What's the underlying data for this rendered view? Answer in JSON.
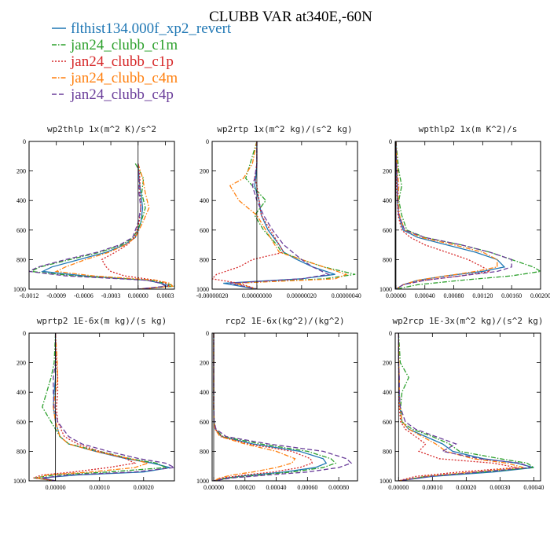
{
  "figure": {
    "title": "CLUBB VAR at340E,-60N",
    "legend": [
      {
        "label": "flthist134.000f_xp2_revert",
        "color": "#1f77b4",
        "dash": "solid"
      },
      {
        "label": "jan24_clubb_c1m",
        "color": "#2ca02c",
        "dash": "dashdot"
      },
      {
        "label": "jan24_clubb_c1p",
        "color": "#d62728",
        "dash": "dotted"
      },
      {
        "label": "jan24_clubb_c4m",
        "color": "#ff7f0e",
        "dash": "dashdot"
      },
      {
        "label": "jan24_clubb_c4p",
        "color": "#6a3d9a",
        "dash": "dashed"
      }
    ]
  },
  "chart_data": [
    {
      "type": "line",
      "title": "wp2thlp  1x(m^2 K)/s^2",
      "xlim": [
        -0.0012,
        0.0004
      ],
      "xticks": [
        -0.0012,
        -0.0009,
        -0.0006,
        -0.0003,
        0.0,
        0.0003
      ],
      "xtick_labels": [
        "-0.0012",
        "-0.0009",
        "-0.0006",
        "-0.0003",
        "0.00000",
        "0.0003"
      ],
      "ylim": [
        1000,
        0
      ],
      "yticks": [
        0,
        200,
        400,
        600,
        800,
        1000
      ],
      "y": [
        150,
        250,
        350,
        450,
        550,
        650,
        700,
        750,
        800,
        850,
        880,
        910,
        940,
        960,
        980,
        1000
      ],
      "series": [
        {
          "name": "flthist134.000f_xp2_revert",
          "values": [
            0,
            1e-05,
            3e-05,
            5e-05,
            3e-05,
            -3e-05,
            -0.00015,
            -0.00035,
            -0.00065,
            -0.00095,
            -0.00105,
            -0.0006,
            0.0001,
            0.00025,
            0.00035,
            0
          ]
        },
        {
          "name": "jan24_clubb_c1m",
          "values": [
            -3e-05,
            6e-05,
            4e-05,
            8e-05,
            3e-05,
            -5e-05,
            -0.00018,
            -0.00042,
            -0.00075,
            -0.00108,
            -0.00118,
            -0.0007,
            0.00015,
            0.0003,
            0.0004,
            0
          ]
        },
        {
          "name": "jan24_clubb_c1p",
          "values": [
            0,
            2e-05,
            2e-05,
            3e-05,
            1e-05,
            -4e-05,
            -0.00012,
            -0.00025,
            -0.0004,
            -0.00035,
            -0.0003,
            -0.00015,
            0.0002,
            0.0003,
            0.00035,
            0
          ]
        },
        {
          "name": "jan24_clubb_c4m",
          "values": [
            0,
            5e-05,
            8e-05,
            0.00012,
            5e-05,
            -3e-05,
            -0.00014,
            -0.00032,
            -0.00058,
            -0.0008,
            -0.0009,
            -0.0005,
            0.0002,
            0.00035,
            0.00038,
            0
          ]
        },
        {
          "name": "jan24_clubb_c4p",
          "values": [
            0,
            1e-05,
            1e-05,
            3e-05,
            0.0,
            -6e-05,
            -0.0002,
            -0.00045,
            -0.0008,
            -0.0011,
            -0.0012,
            -0.0008,
            0.0001,
            0.00025,
            0.0003,
            0
          ]
        }
      ]
    },
    {
      "type": "line",
      "title": "wp2rtp  1x(m^2 kg)/(s^2 kg)",
      "xlim": [
        -2e-07,
        4.5e-07
      ],
      "xticks": [
        -2e-07,
        0.0,
        2e-07,
        4e-07
      ],
      "xtick_labels": [
        "-0.00000020",
        "0.00000000",
        "0.00000020",
        "0.00000040"
      ],
      "ylim": [
        1000,
        0
      ],
      "yticks": [
        0,
        200,
        400,
        600,
        800,
        1000
      ],
      "y": [
        0,
        150,
        250,
        300,
        400,
        500,
        600,
        700,
        750,
        800,
        850,
        900,
        930,
        960,
        1000
      ],
      "series": [
        {
          "name": "flthist134.000f_xp2_revert",
          "values": [
            0,
            0,
            -5e-09,
            -1e-08,
            1e-08,
            2e-08,
            5e-08,
            1e-07,
            1.2e-07,
            1.8e-07,
            2.5e-07,
            3.5e-07,
            2e-07,
            -1.5e-07,
            0
          ]
        },
        {
          "name": "jan24_clubb_c1m",
          "values": [
            0,
            -3e-08,
            -5e-08,
            -2e-08,
            4e-08,
            -1e-08,
            3e-08,
            9e-08,
            1.1e-07,
            2e-07,
            3e-07,
            4.4e-07,
            3e-07,
            -1e-07,
            0
          ]
        },
        {
          "name": "jan24_clubb_c1p",
          "values": [
            0,
            0.0,
            -1e-08,
            0.0,
            1e-08,
            2e-08,
            6e-08,
            1e-07,
            1.2e-07,
            -2e-08,
            -8e-08,
            -1.8e-07,
            -2e-07,
            -8e-08,
            0
          ]
        },
        {
          "name": "jan24_clubb_c4m",
          "values": [
            0,
            -2e-08,
            -6e-08,
            -1.2e-07,
            -8e-08,
            0.0,
            4e-08,
            8e-08,
            1e-07,
            2e-07,
            3e-07,
            4e-07,
            3.5e-07,
            -1e-07,
            0
          ]
        },
        {
          "name": "jan24_clubb_c4p",
          "values": [
            0,
            0.0,
            -1e-08,
            -2e-08,
            0.0,
            3e-08,
            7e-08,
            1.2e-07,
            1.6e-07,
            2e-07,
            2.5e-07,
            3.2e-07,
            2e-07,
            -1.2e-07,
            0
          ]
        }
      ]
    },
    {
      "type": "line",
      "title": "wpthlp2  1x(m K^2)/s",
      "xlim": [
        -1e-05,
        0.002
      ],
      "xticks": [
        0.0,
        0.0004,
        0.0008,
        0.0012,
        0.0016,
        0.002
      ],
      "xtick_labels": [
        "0.00000",
        "0.00040",
        "0.00080",
        "0.00120",
        "0.00160",
        "0.00200"
      ],
      "ylim": [
        1000,
        0
      ],
      "yticks": [
        0,
        200,
        400,
        600,
        800,
        1000
      ],
      "y": [
        0,
        200,
        300,
        400,
        500,
        600,
        650,
        700,
        750,
        800,
        850,
        880,
        910,
        940,
        970,
        1000
      ],
      "series": [
        {
          "name": "flthist134.000f_xp2_revert",
          "values": [
            0,
            1e-05,
            2e-05,
            2e-05,
            4e-05,
            0.0001,
            0.0003,
            0.0007,
            0.0011,
            0.0014,
            0.0015,
            0.0012,
            0.0007,
            0.0003,
            0.0001,
            0
          ]
        },
        {
          "name": "jan24_clubb_c1m",
          "values": [
            0,
            4e-05,
            8e-05,
            4e-05,
            8e-05,
            0.00015,
            0.0004,
            0.0009,
            0.0013,
            0.0016,
            0.0019,
            0.002,
            0.0016,
            0.0009,
            0.0003,
            0
          ]
        },
        {
          "name": "jan24_clubb_c1p",
          "values": [
            0,
            1e-05,
            1e-05,
            2e-05,
            3e-05,
            8e-05,
            0.0002,
            0.0004,
            0.0007,
            0.001,
            0.0012,
            0.0013,
            0.0009,
            0.0004,
            0.0001,
            0
          ]
        },
        {
          "name": "jan24_clubb_c4m",
          "values": [
            0,
            2e-05,
            4e-05,
            3e-05,
            5e-05,
            0.00012,
            0.00035,
            0.0008,
            0.0012,
            0.0014,
            0.0014,
            0.0011,
            0.0007,
            0.0003,
            0.0001,
            0
          ]
        },
        {
          "name": "jan24_clubb_c4p",
          "values": [
            0,
            1e-05,
            2e-05,
            2e-05,
            4e-05,
            0.00012,
            0.0004,
            0.0009,
            0.0013,
            0.0016,
            0.0016,
            0.0014,
            0.0009,
            0.0004,
            0.0001,
            0
          ]
        }
      ]
    },
    {
      "type": "line",
      "title": "wprtp2  1E-6x(m kg)/(s kg)",
      "xlim": [
        -6e-05,
        0.00027
      ],
      "xticks": [
        0.0,
        0.0001,
        0.0002
      ],
      "xtick_labels": [
        "0.00000",
        "0.00010",
        "0.00020"
      ],
      "ylim": [
        1000,
        0
      ],
      "yticks": [
        0,
        200,
        400,
        600,
        800,
        1000
      ],
      "y": [
        0,
        200,
        300,
        400,
        500,
        600,
        700,
        750,
        800,
        850,
        880,
        910,
        940,
        960,
        980,
        1000
      ],
      "series": [
        {
          "name": "flthist134.000f_xp2_revert",
          "values": [
            0,
            0,
            0,
            -3e-06,
            -5e-06,
            0.0,
            1e-05,
            3e-05,
            9e-05,
            0.00016,
            0.00022,
            0.00026,
            0.0002,
            5e-05,
            -3e-05,
            0
          ]
        },
        {
          "name": "jan24_clubb_c1m",
          "values": [
            0,
            -3e-06,
            -1e-05,
            -2e-05,
            -3e-05,
            -1e-05,
            1e-05,
            3e-05,
            0.0001,
            0.00017,
            0.00023,
            0.00025,
            0.00012,
            0.0,
            -5e-05,
            0
          ]
        },
        {
          "name": "jan24_clubb_c1p",
          "values": [
            0,
            2e-06,
            5e-06,
            5e-06,
            2e-06,
            5e-06,
            2e-05,
            5e-05,
            0.0001,
            0.00016,
            0.00018,
            0.00012,
            4e-05,
            -3e-05,
            -5e-05,
            0
          ]
        },
        {
          "name": "jan24_clubb_c4m",
          "values": [
            0,
            4e-06,
            5e-06,
            0.0,
            -5e-06,
            0.0,
            1e-05,
            3e-05,
            9e-05,
            0.00017,
            0.00021,
            0.00018,
            8e-05,
            -2e-05,
            -4e-05,
            0
          ]
        },
        {
          "name": "jan24_clubb_c4p",
          "values": [
            0,
            0.0,
            -5e-06,
            -5e-06,
            -3e-06,
            5e-06,
            3e-05,
            6e-05,
            0.00012,
            0.00019,
            0.00025,
            0.00027,
            0.00018,
            3e-05,
            -3e-05,
            0
          ]
        }
      ]
    },
    {
      "type": "line",
      "title": "rcp2  1E-6x(kg^2)/(kg^2)",
      "xlim": [
        -1e-05,
        0.00092
      ],
      "xticks": [
        0.0,
        0.0002,
        0.0004,
        0.0006,
        0.0008
      ],
      "xtick_labels": [
        "0.00000",
        "0.00020",
        "0.00040",
        "0.00060",
        "0.00080"
      ],
      "ylim": [
        1000,
        0
      ],
      "yticks": [
        0,
        200,
        400,
        600,
        800,
        1000
      ],
      "y": [
        0,
        300,
        500,
        600,
        650,
        700,
        750,
        800,
        850,
        880,
        910,
        940,
        960,
        980,
        1000
      ],
      "series": [
        {
          "name": "flthist134.000f_xp2_revert",
          "values": [
            0,
            0,
            0,
            2e-06,
            1e-05,
            5e-05,
            0.00025,
            0.00055,
            0.0007,
            0.00072,
            0.00065,
            0.00045,
            0.00025,
            8e-05,
            0
          ]
        },
        {
          "name": "jan24_clubb_c1m",
          "values": [
            0,
            0,
            0,
            3e-06,
            1e-05,
            6e-05,
            0.0003,
            0.0006,
            0.00075,
            0.00078,
            0.0007,
            0.0005,
            0.0003,
            0.0001,
            0
          ]
        },
        {
          "name": "jan24_clubb_c1p",
          "values": [
            0,
            0,
            0,
            2e-06,
            1e-05,
            5e-05,
            0.00022,
            0.0005,
            0.00062,
            0.00063,
            0.00055,
            0.00038,
            0.0002,
            6e-05,
            0
          ]
        },
        {
          "name": "jan24_clubb_c4m",
          "values": [
            0,
            0,
            0,
            2e-06,
            8e-06,
            4e-05,
            0.0002,
            0.0004,
            0.00052,
            0.0005,
            0.0004,
            0.00025,
            0.00012,
            4e-05,
            0
          ]
        },
        {
          "name": "jan24_clubb_c4p",
          "values": [
            0,
            0,
            0,
            3e-06,
            1.5e-05,
            8e-05,
            0.00035,
            0.0007,
            0.00085,
            0.00088,
            0.0008,
            0.0006,
            0.00035,
            0.00012,
            0
          ]
        }
      ]
    },
    {
      "type": "line",
      "title": "wp2rcp  1E-3x(m^2 kg)/(s^2 kg)",
      "xlim": [
        -1e-05,
        0.00042
      ],
      "xticks": [
        0.0,
        0.0001,
        0.0002,
        0.0003,
        0.0004
      ],
      "xtick_labels": [
        "0.00000",
        "0.00010",
        "0.00020",
        "0.00030",
        "0.00040"
      ],
      "ylim": [
        1000,
        0
      ],
      "yticks": [
        0,
        200,
        400,
        600,
        800,
        1000
      ],
      "y": [
        0,
        200,
        300,
        400,
        500,
        600,
        650,
        700,
        750,
        800,
        850,
        880,
        910,
        940,
        970,
        1000
      ],
      "series": [
        {
          "name": "flthist134.000f_xp2_revert",
          "values": [
            0,
            0,
            2e-06,
            2e-06,
            4e-06,
            1e-05,
            3e-05,
            8e-05,
            0.00013,
            0.00016,
            0.00025,
            0.00035,
            0.0004,
            0.00028,
            0.0001,
            0
          ]
        },
        {
          "name": "jan24_clubb_c1m",
          "values": [
            0,
            5e-06,
            3e-05,
            1e-05,
            6e-06,
            1e-05,
            4e-05,
            0.0001,
            0.00015,
            0.00018,
            0.0003,
            0.00038,
            0.0004,
            0.00025,
            8e-05,
            0
          ]
        },
        {
          "name": "jan24_clubb_c1p",
          "values": [
            0,
            0,
            1e-06,
            1e-06,
            2e-06,
            6e-06,
            2e-05,
            5e-05,
            8e-05,
            6e-05,
            0.00012,
            0.00028,
            0.00035,
            0.00018,
            5e-05,
            0
          ]
        },
        {
          "name": "jan24_clubb_c4m",
          "values": [
            0,
            1e-06,
            2e-06,
            2e-06,
            4e-06,
            1e-05,
            3e-05,
            7e-05,
            0.00011,
            0.00014,
            0.00022,
            0.00032,
            0.00037,
            0.00022,
            8e-05,
            0
          ]
        },
        {
          "name": "jan24_clubb_c4p",
          "values": [
            0,
            0,
            2e-06,
            2e-06,
            5e-06,
            2e-05,
            5e-05,
            0.00011,
            0.00017,
            0.00013,
            0.00024,
            0.00036,
            0.00039,
            0.00024,
            9e-05,
            0
          ]
        }
      ]
    }
  ]
}
